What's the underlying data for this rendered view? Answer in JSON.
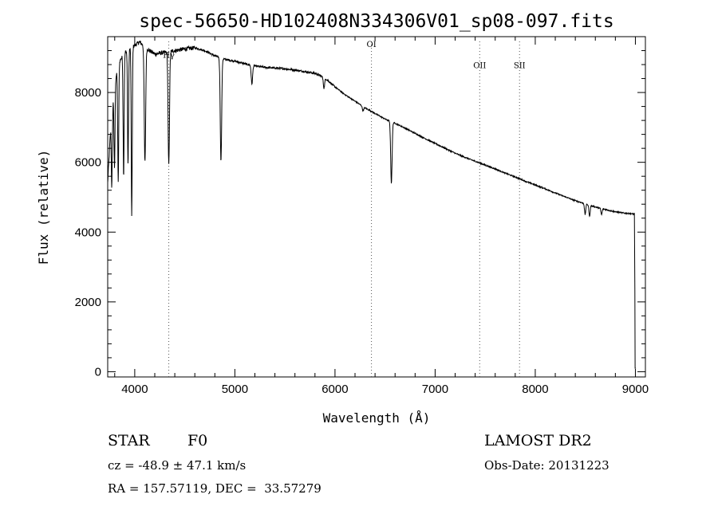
{
  "chart_data": {
    "type": "line",
    "title": "spec-56650-HD102408N334306V01_sp08-097.fits",
    "xlabel": "Wavelength (Å)",
    "ylabel": "Flux (relative)",
    "xlim": [
      3730,
      9100
    ],
    "ylim": [
      -150,
      9600
    ],
    "x_ticks": [
      4000,
      5000,
      6000,
      7000,
      8000,
      9000
    ],
    "x_tick_labels": [
      "4000",
      "5000",
      "6000",
      "7000",
      "8000",
      "9000"
    ],
    "y_ticks": [
      0,
      2000,
      4000,
      6000,
      8000
    ],
    "y_tick_labels": [
      "0",
      "2000",
      "4000",
      "6000",
      "8000"
    ],
    "grid": false,
    "series": [
      {
        "continuum": [
          [
            3730,
            5400
          ],
          [
            3760,
            7000
          ],
          [
            3800,
            8300
          ],
          [
            3850,
            8900
          ],
          [
            3900,
            9150
          ],
          [
            3950,
            9250
          ],
          [
            4000,
            9350
          ],
          [
            4050,
            9450
          ],
          [
            4100,
            9300
          ],
          [
            4150,
            9200
          ],
          [
            4200,
            9100
          ],
          [
            4300,
            9150
          ],
          [
            4400,
            9200
          ],
          [
            4500,
            9250
          ],
          [
            4600,
            9280
          ],
          [
            4700,
            9200
          ],
          [
            4800,
            9050
          ],
          [
            4900,
            8950
          ],
          [
            5000,
            8900
          ],
          [
            5100,
            8820
          ],
          [
            5200,
            8760
          ],
          [
            5300,
            8720
          ],
          [
            5400,
            8700
          ],
          [
            5500,
            8680
          ],
          [
            5600,
            8640
          ],
          [
            5700,
            8600
          ],
          [
            5800,
            8550
          ],
          [
            5900,
            8420
          ],
          [
            6000,
            8160
          ],
          [
            6100,
            7940
          ],
          [
            6200,
            7750
          ],
          [
            6300,
            7560
          ],
          [
            6400,
            7400
          ],
          [
            6500,
            7240
          ],
          [
            6600,
            7120
          ],
          [
            6700,
            6980
          ],
          [
            6800,
            6830
          ],
          [
            6900,
            6680
          ],
          [
            7000,
            6540
          ],
          [
            7100,
            6400
          ],
          [
            7200,
            6260
          ],
          [
            7300,
            6140
          ],
          [
            7400,
            6030
          ],
          [
            7500,
            5920
          ],
          [
            7600,
            5810
          ],
          [
            7700,
            5690
          ],
          [
            7800,
            5580
          ],
          [
            7900,
            5460
          ],
          [
            8000,
            5350
          ],
          [
            8100,
            5240
          ],
          [
            8200,
            5120
          ],
          [
            8300,
            5010
          ],
          [
            8400,
            4900
          ],
          [
            8500,
            4810
          ],
          [
            8600,
            4720
          ],
          [
            8700,
            4650
          ],
          [
            8800,
            4580
          ],
          [
            8900,
            4540
          ],
          [
            8990,
            4520
          ],
          [
            9000,
            100
          ]
        ],
        "absorption_lines": [
          [
            3771,
            5300
          ],
          [
            3798,
            5800
          ],
          [
            3835,
            5400
          ],
          [
            3889,
            5600
          ],
          [
            3933,
            5900
          ],
          [
            3970,
            4500
          ],
          [
            4102,
            6000
          ],
          [
            4340,
            5950
          ],
          [
            4861,
            6050
          ],
          [
            5170,
            8250
          ],
          [
            5890,
            8130
          ],
          [
            6280,
            7480
          ],
          [
            6563,
            5400
          ],
          [
            8498,
            4500
          ],
          [
            8542,
            4450
          ],
          [
            8662,
            4500
          ]
        ]
      }
    ],
    "annotations": [
      {
        "label": "Hγ",
        "x": 4340,
        "y": 9000
      },
      {
        "label": "OI",
        "x": 6364,
        "y": 9300
      },
      {
        "label": "OII",
        "x": 7445,
        "y": 8700
      },
      {
        "label": "SII",
        "x": 7843,
        "y": 8700
      }
    ]
  },
  "info": {
    "object_class": "STAR",
    "subclass": "F0",
    "survey": "LAMOST DR2",
    "redshift": "cz = -48.9 ± 47.1 km/s",
    "obs_date": "Obs-Date: 20131223",
    "coords": "RA = 157.57119, DEC =  33.57279"
  }
}
